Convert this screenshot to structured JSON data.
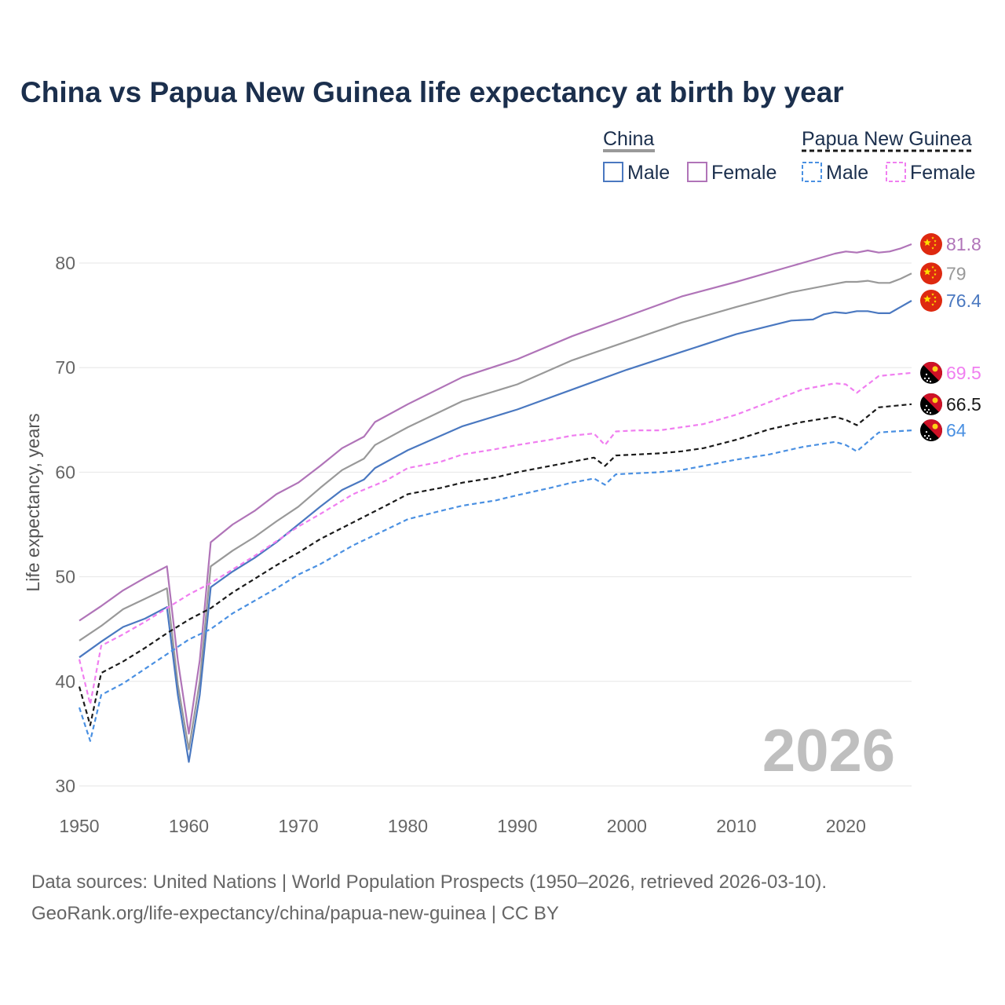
{
  "chart_data": {
    "type": "line",
    "title": "China vs Papua New Guinea life expectancy at birth by year",
    "ylabel": "Life expectancy, years",
    "xlabel": "",
    "xlim": [
      1950,
      2026
    ],
    "ylim": [
      30,
      85
    ],
    "yticks": [
      30,
      40,
      50,
      60,
      70,
      80
    ],
    "xticks": [
      1950,
      1960,
      1970,
      1980,
      1990,
      2000,
      2010,
      2020
    ],
    "year_label": "2026",
    "legend": {
      "groups": [
        {
          "name": "China",
          "entries": [
            "Male",
            "Female"
          ]
        },
        {
          "name": "Papua New Guinea",
          "entries": [
            "Male",
            "Female"
          ]
        }
      ]
    },
    "series": [
      {
        "id": "cn_female",
        "country": "China",
        "sex": "Female",
        "color": "#b074b8",
        "dashed": false,
        "end_label": "81.8",
        "flag": "china",
        "points": [
          [
            1950,
            45.8
          ],
          [
            1952,
            47.2
          ],
          [
            1954,
            48.7
          ],
          [
            1956,
            49.9
          ],
          [
            1958,
            51.0
          ],
          [
            1959,
            42.0
          ],
          [
            1960,
            35.0
          ],
          [
            1961,
            42.0
          ],
          [
            1962,
            53.3
          ],
          [
            1964,
            55.0
          ],
          [
            1966,
            56.3
          ],
          [
            1968,
            57.9
          ],
          [
            1970,
            59.0
          ],
          [
            1972,
            60.6
          ],
          [
            1974,
            62.3
          ],
          [
            1976,
            63.4
          ],
          [
            1977,
            64.8
          ],
          [
            1980,
            66.5
          ],
          [
            1985,
            69.1
          ],
          [
            1990,
            70.8
          ],
          [
            1995,
            73.0
          ],
          [
            2000,
            74.9
          ],
          [
            2005,
            76.8
          ],
          [
            2010,
            78.2
          ],
          [
            2015,
            79.7
          ],
          [
            2019,
            80.9
          ],
          [
            2020,
            81.1
          ],
          [
            2021,
            81.0
          ],
          [
            2022,
            81.2
          ],
          [
            2023,
            81.0
          ],
          [
            2024,
            81.1
          ],
          [
            2025,
            81.4
          ],
          [
            2026,
            81.8
          ]
        ]
      },
      {
        "id": "cn_total",
        "country": "China",
        "sex": "Total",
        "color": "#999999",
        "dashed": false,
        "end_label": "79",
        "flag": "china",
        "points": [
          [
            1950,
            43.9
          ],
          [
            1952,
            45.3
          ],
          [
            1954,
            46.9
          ],
          [
            1956,
            47.9
          ],
          [
            1958,
            48.9
          ],
          [
            1959,
            39.7
          ],
          [
            1960,
            33.5
          ],
          [
            1961,
            40.0
          ],
          [
            1962,
            51.0
          ],
          [
            1964,
            52.5
          ],
          [
            1966,
            53.8
          ],
          [
            1968,
            55.3
          ],
          [
            1970,
            56.7
          ],
          [
            1972,
            58.5
          ],
          [
            1974,
            60.2
          ],
          [
            1976,
            61.3
          ],
          [
            1977,
            62.6
          ],
          [
            1980,
            64.3
          ],
          [
            1985,
            66.8
          ],
          [
            1990,
            68.4
          ],
          [
            1995,
            70.7
          ],
          [
            2000,
            72.5
          ],
          [
            2005,
            74.3
          ],
          [
            2010,
            75.8
          ],
          [
            2015,
            77.2
          ],
          [
            2019,
            78.0
          ],
          [
            2020,
            78.2
          ],
          [
            2021,
            78.2
          ],
          [
            2022,
            78.3
          ],
          [
            2023,
            78.1
          ],
          [
            2024,
            78.1
          ],
          [
            2025,
            78.5
          ],
          [
            2026,
            79.0
          ]
        ]
      },
      {
        "id": "cn_male",
        "country": "China",
        "sex": "Male",
        "color": "#4a78c0",
        "dashed": false,
        "end_label": "76.4",
        "flag": "china",
        "points": [
          [
            1950,
            42.3
          ],
          [
            1952,
            43.8
          ],
          [
            1954,
            45.2
          ],
          [
            1956,
            46.0
          ],
          [
            1958,
            47.1
          ],
          [
            1959,
            38.7
          ],
          [
            1960,
            32.3
          ],
          [
            1961,
            38.7
          ],
          [
            1962,
            49.0
          ],
          [
            1964,
            50.5
          ],
          [
            1966,
            51.8
          ],
          [
            1968,
            53.3
          ],
          [
            1970,
            55.0
          ],
          [
            1972,
            56.7
          ],
          [
            1974,
            58.3
          ],
          [
            1976,
            59.3
          ],
          [
            1977,
            60.4
          ],
          [
            1980,
            62.1
          ],
          [
            1985,
            64.4
          ],
          [
            1990,
            66.0
          ],
          [
            1995,
            67.9
          ],
          [
            2000,
            69.8
          ],
          [
            2005,
            71.5
          ],
          [
            2010,
            73.2
          ],
          [
            2015,
            74.5
          ],
          [
            2017,
            74.6
          ],
          [
            2018,
            75.1
          ],
          [
            2019,
            75.3
          ],
          [
            2020,
            75.2
          ],
          [
            2021,
            75.4
          ],
          [
            2022,
            75.4
          ],
          [
            2023,
            75.2
          ],
          [
            2024,
            75.2
          ],
          [
            2025,
            75.8
          ],
          [
            2026,
            76.4
          ]
        ]
      },
      {
        "id": "pg_female",
        "country": "Papua New Guinea",
        "sex": "Female",
        "color": "#f07ef0",
        "dashed": true,
        "end_label": "69.5",
        "flag": "png",
        "points": [
          [
            1950,
            42.1
          ],
          [
            1951,
            37.8
          ],
          [
            1952,
            43.4
          ],
          [
            1954,
            44.5
          ],
          [
            1956,
            45.7
          ],
          [
            1958,
            47.0
          ],
          [
            1960,
            48.3
          ],
          [
            1962,
            49.4
          ],
          [
            1964,
            50.7
          ],
          [
            1966,
            52.0
          ],
          [
            1968,
            53.4
          ],
          [
            1970,
            54.8
          ],
          [
            1972,
            56.0
          ],
          [
            1975,
            57.9
          ],
          [
            1978,
            59.2
          ],
          [
            1980,
            60.4
          ],
          [
            1983,
            61.0
          ],
          [
            1985,
            61.7
          ],
          [
            1988,
            62.2
          ],
          [
            1990,
            62.6
          ],
          [
            1993,
            63.1
          ],
          [
            1995,
            63.5
          ],
          [
            1997,
            63.7
          ],
          [
            1998,
            62.6
          ],
          [
            1999,
            63.9
          ],
          [
            2001,
            64.0
          ],
          [
            2003,
            64.0
          ],
          [
            2005,
            64.3
          ],
          [
            2007,
            64.6
          ],
          [
            2010,
            65.5
          ],
          [
            2013,
            66.7
          ],
          [
            2016,
            67.9
          ],
          [
            2019,
            68.5
          ],
          [
            2020,
            68.4
          ],
          [
            2021,
            67.6
          ],
          [
            2023,
            69.2
          ],
          [
            2026,
            69.5
          ]
        ]
      },
      {
        "id": "pg_total",
        "country": "Papua New Guinea",
        "sex": "Total",
        "color": "#1a1a1a",
        "dashed": true,
        "end_label": "66.5",
        "flag": "png",
        "points": [
          [
            1950,
            39.5
          ],
          [
            1951,
            35.8
          ],
          [
            1952,
            40.8
          ],
          [
            1954,
            41.9
          ],
          [
            1956,
            43.2
          ],
          [
            1958,
            44.6
          ],
          [
            1960,
            45.9
          ],
          [
            1962,
            47.0
          ],
          [
            1964,
            48.5
          ],
          [
            1966,
            49.8
          ],
          [
            1968,
            51.1
          ],
          [
            1970,
            52.3
          ],
          [
            1972,
            53.6
          ],
          [
            1975,
            55.2
          ],
          [
            1978,
            56.8
          ],
          [
            1980,
            57.9
          ],
          [
            1983,
            58.5
          ],
          [
            1985,
            59.0
          ],
          [
            1988,
            59.5
          ],
          [
            1990,
            60.0
          ],
          [
            1993,
            60.6
          ],
          [
            1995,
            61.0
          ],
          [
            1997,
            61.4
          ],
          [
            1998,
            60.6
          ],
          [
            1999,
            61.6
          ],
          [
            2001,
            61.7
          ],
          [
            2003,
            61.8
          ],
          [
            2005,
            62.0
          ],
          [
            2007,
            62.3
          ],
          [
            2010,
            63.1
          ],
          [
            2013,
            64.1
          ],
          [
            2016,
            64.8
          ],
          [
            2019,
            65.3
          ],
          [
            2020,
            65.0
          ],
          [
            2021,
            64.5
          ],
          [
            2023,
            66.2
          ],
          [
            2026,
            66.5
          ]
        ]
      },
      {
        "id": "pg_male",
        "country": "Papua New Guinea",
        "sex": "Male",
        "color": "#4a90e2",
        "dashed": true,
        "end_label": "64",
        "flag": "png",
        "points": [
          [
            1950,
            37.5
          ],
          [
            1951,
            34.3
          ],
          [
            1952,
            38.7
          ],
          [
            1954,
            39.8
          ],
          [
            1956,
            41.2
          ],
          [
            1958,
            42.6
          ],
          [
            1960,
            44.0
          ],
          [
            1962,
            45.0
          ],
          [
            1964,
            46.5
          ],
          [
            1966,
            47.7
          ],
          [
            1968,
            48.9
          ],
          [
            1970,
            50.2
          ],
          [
            1972,
            51.2
          ],
          [
            1975,
            53.0
          ],
          [
            1978,
            54.5
          ],
          [
            1980,
            55.5
          ],
          [
            1983,
            56.3
          ],
          [
            1985,
            56.8
          ],
          [
            1988,
            57.3
          ],
          [
            1990,
            57.8
          ],
          [
            1993,
            58.5
          ],
          [
            1995,
            59.0
          ],
          [
            1997,
            59.4
          ],
          [
            1998,
            58.8
          ],
          [
            1999,
            59.8
          ],
          [
            2001,
            59.9
          ],
          [
            2003,
            60.0
          ],
          [
            2005,
            60.2
          ],
          [
            2007,
            60.6
          ],
          [
            2010,
            61.2
          ],
          [
            2013,
            61.7
          ],
          [
            2016,
            62.4
          ],
          [
            2019,
            62.9
          ],
          [
            2020,
            62.6
          ],
          [
            2021,
            62.0
          ],
          [
            2023,
            63.8
          ],
          [
            2026,
            64.0
          ]
        ]
      }
    ],
    "sources": [
      "Data sources: United Nations | World Population Prospects (1950–2026, retrieved 2026-03-10).",
      "GeoRank.org/life-expectancy/china/papua-new-guinea | CC BY"
    ]
  }
}
